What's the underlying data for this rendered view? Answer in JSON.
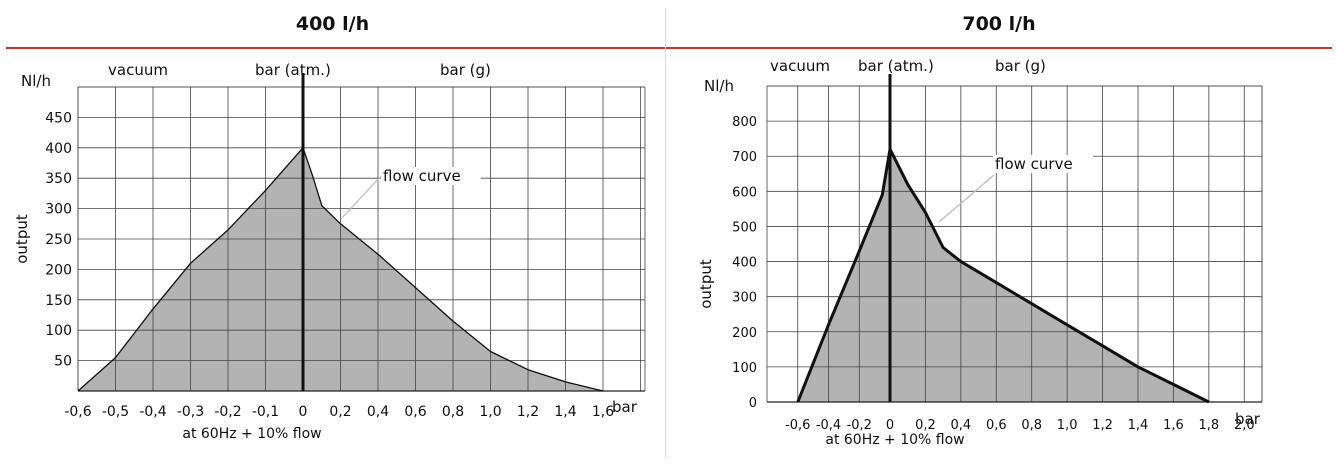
{
  "panels": [
    {
      "header": "400 l/h"
    },
    {
      "header": "700 l/h"
    }
  ],
  "chart_data": [
    {
      "type": "area",
      "title": "400 l/h",
      "y_unit": "Nl/h",
      "ylabel": "output",
      "x_unit": "bar",
      "xlabel": "at 60Hz + 10% flow",
      "region_labels": {
        "left": "vacuum",
        "center": "bar (atm.)",
        "right": "bar (g)"
      },
      "annotation": "flow curve",
      "xlim": [
        -0.6,
        1.6
      ],
      "ylim": [
        0,
        500
      ],
      "x_ticks": [
        -0.6,
        -0.5,
        -0.4,
        -0.3,
        -0.2,
        -0.1,
        0,
        0.2,
        0.4,
        0.6,
        0.8,
        1.0,
        1.2,
        1.4,
        1.6
      ],
      "x_tick_labels": [
        "-0,6",
        "-0,5",
        "-0,4",
        "-0,3",
        "-0,2",
        "-0,1",
        "0",
        "0,2",
        "0,4",
        "0,6",
        "0,8",
        "1,0",
        "1,2",
        "1,4",
        "1,6"
      ],
      "y_ticks": [
        50,
        100,
        150,
        200,
        250,
        300,
        350,
        400,
        450
      ],
      "y_tick_labels": [
        "50",
        "100",
        "150",
        "200",
        "250",
        "300",
        "350",
        "400",
        "450"
      ],
      "grid": true,
      "series": [
        {
          "x": [
            -0.6,
            -0.5,
            -0.4,
            -0.3,
            -0.2,
            -0.1,
            0,
            0.05,
            0.1,
            0.2,
            0.4,
            0.6,
            0.8,
            1.0,
            1.2,
            1.4,
            1.6
          ],
          "y": [
            0,
            55,
            135,
            210,
            265,
            330,
            400,
            355,
            305,
            275,
            225,
            170,
            115,
            65,
            35,
            15,
            0
          ]
        }
      ]
    },
    {
      "type": "area",
      "title": "700 l/h",
      "y_unit": "Nl/h",
      "ylabel": "output",
      "x_unit": "bar",
      "xlabel": "at 60Hz + 10% flow",
      "region_labels": {
        "left": "vacuum",
        "center": "bar (atm.)",
        "right": "bar (g)"
      },
      "annotation": "flow curve",
      "xlim": [
        -0.8,
        2.1
      ],
      "ylim": [
        0,
        900
      ],
      "x_ticks": [
        -0.6,
        -0.4,
        -0.2,
        0,
        0.2,
        0.4,
        0.6,
        0.8,
        1.0,
        1.2,
        1.4,
        1.6,
        1.8,
        2.0
      ],
      "x_tick_labels": [
        "-0,6",
        "-0,4",
        "-0,2",
        "0",
        "0,2",
        "0,4",
        "0,6",
        "0,8",
        "1,0",
        "1,2",
        "1,4",
        "1,6",
        "1,8",
        "2,0"
      ],
      "y_ticks": [
        0,
        100,
        200,
        300,
        400,
        500,
        600,
        700,
        800
      ],
      "y_tick_labels": [
        "0",
        "100",
        "200",
        "300",
        "400",
        "500",
        "600",
        "700",
        "800"
      ],
      "grid": true,
      "series": [
        {
          "x": [
            -0.6,
            -0.4,
            -0.2,
            -0.05,
            0,
            0.1,
            0.2,
            0.3,
            0.4,
            0.6,
            0.8,
            1.0,
            1.2,
            1.4,
            1.6,
            1.8
          ],
          "y": [
            0,
            220,
            430,
            590,
            720,
            620,
            540,
            440,
            400,
            340,
            280,
            220,
            160,
            100,
            50,
            0
          ]
        }
      ]
    }
  ]
}
